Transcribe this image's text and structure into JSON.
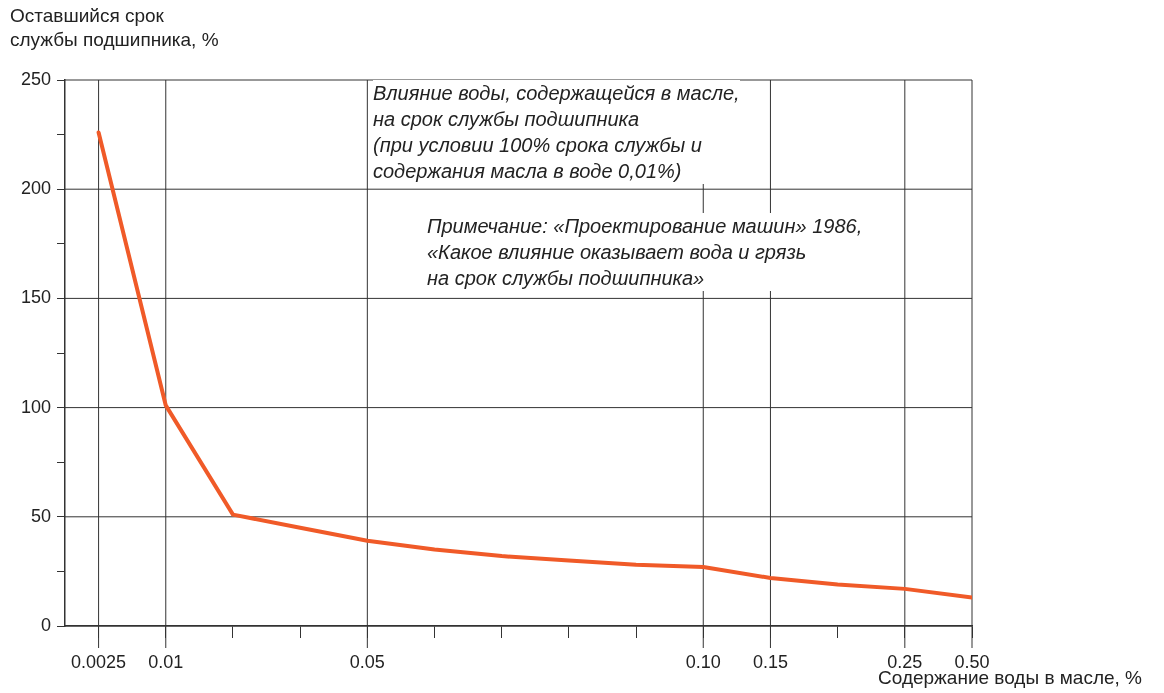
{
  "chart_data": {
    "type": "line",
    "ylabel": "Оставшийся срок\nслужбы подшипника, %",
    "xlabel": "Содержание воды в масле, %",
    "categories": [
      "0.0025",
      "0.01",
      null,
      null,
      "0.05",
      null,
      null,
      null,
      null,
      "0.10",
      "0.15",
      null,
      "0.25",
      "0.50"
    ],
    "series": [
      {
        "color": "#f05a28",
        "values": [
          226,
          101,
          51,
          45,
          39,
          35,
          32,
          30,
          28,
          27,
          22,
          19,
          17,
          13
        ]
      }
    ],
    "ylim": [
      0,
      250
    ],
    "yticks": [
      0,
      {
        "value": 25,
        "label": null
      },
      50,
      {
        "value": 75,
        "label": null
      },
      100,
      {
        "value": 125,
        "label": null
      },
      150,
      {
        "value": 175,
        "label": null
      },
      200,
      {
        "value": 225,
        "label": null
      },
      250
    ],
    "grid": true,
    "legend": false,
    "marker": "none",
    "line_style": "solid",
    "annotations": [
      "Влияние воды, содержащейся в масле,\nна срок службы подшипника\n(при условии 100% срока службы и\nсодержания  масла в воде 0,01%)",
      "Примечание: «Проектирование машин» 1986,\n«Какое влияние оказывает вода и грязь\nна срок службы подшипника»"
    ]
  }
}
